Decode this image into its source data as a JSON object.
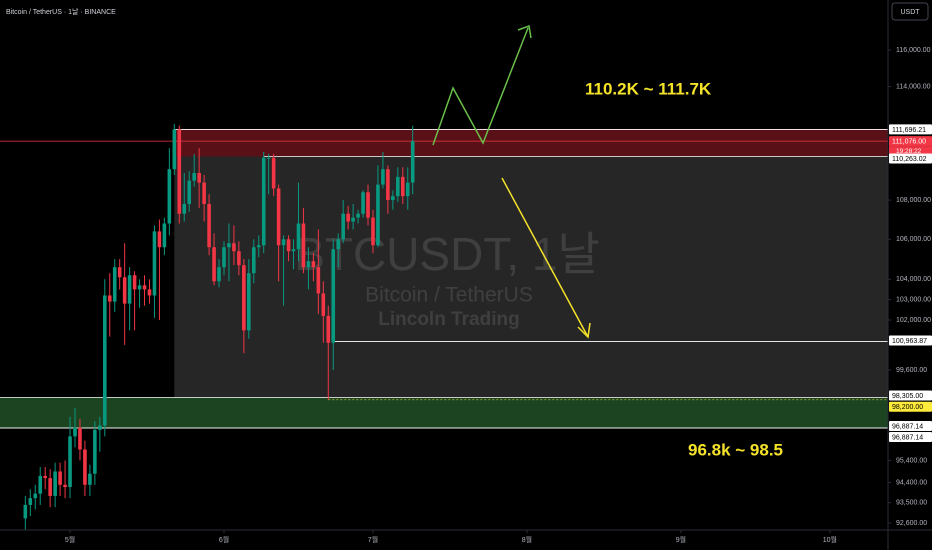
{
  "header": {
    "symbol": "Bitcoin / TetherUS · 1날 · BINANCE",
    "currency": "USDT"
  },
  "chart_data": {
    "type": "candlestick",
    "log": true,
    "up_color": "#089981",
    "down_color": "#f23645",
    "x": [
      112,
      113,
      114,
      115,
      116,
      117,
      118,
      119,
      120,
      121,
      122,
      123,
      124,
      125,
      126,
      127,
      128,
      129,
      130,
      131,
      132,
      133,
      134,
      135,
      136,
      137,
      138,
      139,
      140,
      141,
      142,
      143,
      144,
      145,
      146,
      147,
      148,
      149,
      150,
      151,
      152,
      153,
      154,
      155,
      156,
      157,
      158,
      159,
      160,
      161,
      162,
      163,
      164,
      165,
      166,
      167,
      168,
      169,
      170,
      171,
      172,
      173,
      174,
      175,
      176,
      177,
      178,
      179,
      180,
      181,
      182,
      183,
      184,
      185,
      186,
      187,
      188,
      189,
      190
    ],
    "open": [
      92800,
      93400,
      93700,
      93900,
      94700,
      94600,
      93800,
      94900,
      94300,
      94200,
      96500,
      96900,
      95900,
      94300,
      94800,
      96800,
      97000,
      103200,
      102900,
      104600,
      104100,
      102800,
      104200,
      103500,
      103700,
      103500,
      103200,
      106400,
      105600,
      106800,
      109600,
      111700,
      107300,
      107800,
      109000,
      109400,
      108900,
      107800,
      105600,
      103900,
      104600,
      105600,
      105800,
      105400,
      104700,
      101500,
      104300,
      105600,
      105700,
      110200,
      110200,
      108600,
      105700,
      106000,
      105400,
      105500,
      106800,
      104600,
      104900,
      104600,
      103300,
      102200,
      100900,
      105500,
      106000,
      107300,
      106900,
      107100,
      107300,
      108400,
      107100,
      105700,
      108800,
      109600,
      108000,
      108200,
      109200,
      108200,
      108900
    ],
    "high": [
      93800,
      94100,
      94300,
      95100,
      95100,
      95000,
      95300,
      95300,
      95400,
      97400,
      97800,
      97300,
      96300,
      95200,
      97200,
      97400,
      104000,
      104300,
      105000,
      105000,
      105800,
      104600,
      104400,
      104000,
      104200,
      104000,
      106700,
      107000,
      107100,
      110700,
      111980,
      111900,
      109400,
      109500,
      110400,
      110700,
      109300,
      108300,
      106300,
      105000,
      105900,
      106800,
      106700,
      105900,
      105000,
      105000,
      106000,
      106200,
      110500,
      110400,
      110400,
      108800,
      106200,
      106200,
      106000,
      108900,
      107600,
      105600,
      105300,
      106500,
      103900,
      102700,
      106000,
      106300,
      108000,
      107700,
      107800,
      107500,
      108500,
      108800,
      107500,
      109800,
      110500,
      109800,
      108500,
      109700,
      109700,
      109700,
      111900
    ],
    "low": [
      92300,
      92900,
      93200,
      93400,
      94100,
      93300,
      93300,
      93800,
      93700,
      93700,
      96000,
      95400,
      93800,
      93800,
      94300,
      95800,
      96500,
      101200,
      102400,
      103500,
      100800,
      101500,
      101500,
      102600,
      102700,
      102800,
      102100,
      102000,
      105200,
      106200,
      109300,
      106800,
      106900,
      107400,
      108700,
      107600,
      106900,
      105200,
      103700,
      103600,
      104200,
      103900,
      104700,
      104200,
      100400,
      101100,
      103800,
      105100,
      105300,
      108300,
      108200,
      103900,
      102700,
      104900,
      104500,
      104900,
      104300,
      103500,
      103900,
      102300,
      100900,
      98200,
      99600,
      104600,
      105800,
      106500,
      106500,
      106800,
      107100,
      106700,
      105300,
      105600,
      108600,
      107300,
      107500,
      107900,
      107800,
      107500,
      108300
    ],
    "close": [
      93400,
      93700,
      93900,
      94700,
      94600,
      93800,
      94900,
      94300,
      94200,
      96500,
      96900,
      95900,
      94300,
      94800,
      96800,
      97000,
      103200,
      102900,
      104600,
      104100,
      102800,
      104200,
      103500,
      103700,
      103500,
      103200,
      106400,
      105600,
      106800,
      109600,
      111700,
      107300,
      107800,
      109000,
      109400,
      108900,
      107800,
      105600,
      103900,
      104600,
      105600,
      105800,
      105400,
      104700,
      101500,
      104300,
      105600,
      105700,
      110200,
      110200,
      108600,
      105700,
      106000,
      105400,
      105500,
      106800,
      104600,
      104900,
      104600,
      103300,
      102200,
      100900,
      105500,
      106000,
      107300,
      106900,
      107100,
      107300,
      108400,
      107100,
      105700,
      108800,
      109600,
      108000,
      108200,
      109200,
      108200,
      108900,
      111076
    ],
    "xlim": [
      106.9,
      285.7
    ],
    "xticks": [
      {
        "value": 121,
        "label": "5월"
      },
      {
        "value": 152,
        "label": "6월"
      },
      {
        "value": 182,
        "label": "7월"
      },
      {
        "value": 213,
        "label": "8월"
      },
      {
        "value": 244,
        "label": "9월"
      },
      {
        "value": 274,
        "label": "10월"
      }
    ],
    "ylim": [
      92290,
      118800
    ],
    "yticks": [
      {
        "value": 116000,
        "label": "116,000.00"
      },
      {
        "value": 114000,
        "label": "114,000.00"
      },
      {
        "value": 108000,
        "label": "108,000.00"
      },
      {
        "value": 106000,
        "label": "106,000.00"
      },
      {
        "value": 104000,
        "label": "104,000.00"
      },
      {
        "value": 103000,
        "label": "103,000.00"
      },
      {
        "value": 102000,
        "label": "102,000.00"
      },
      {
        "value": 99600,
        "label": "99,600.00"
      },
      {
        "value": 95400,
        "label": "95,400.00"
      },
      {
        "value": 94400,
        "label": "94,400.00"
      },
      {
        "value": 93500,
        "label": "93,500.00"
      },
      {
        "value": 92600,
        "label": "92,600.00"
      }
    ],
    "zones": [
      {
        "range": [
          110263.02,
          111696.21
        ],
        "color": "#5a1017",
        "start": 142
      },
      {
        "range": [
          98305,
          110263.02
        ],
        "color": "#262626",
        "start": 142
      },
      {
        "range": [
          96887.14,
          98305
        ],
        "color": "#1d4421"
      }
    ],
    "levels": [
      {
        "value": 111696.21,
        "label": "111,696.21",
        "color": "#ffffff",
        "start": 142
      },
      {
        "value": 111076,
        "label": "111,076.00",
        "color": "#f23645",
        "countdown": "19:28:22"
      },
      {
        "value": 110263.02,
        "label": "110,263.02",
        "color": "#ffffff",
        "start": 160
      },
      {
        "value": 100963.87,
        "label": "100,963.87",
        "color": "#ffffff",
        "start": 174
      },
      {
        "value": 98305,
        "label": "98,305.00",
        "color": "#ffffff"
      },
      {
        "value": 98200,
        "label": "98,200.00",
        "color": "#ffeb3b",
        "start": 173,
        "dashed": true
      },
      {
        "value": 96887.14,
        "label": "96,887.14",
        "color": "#ffffff"
      },
      {
        "value": 96887.14,
        "label": "96,887.14",
        "color": "#ffffff"
      }
    ],
    "annotations": [
      "110.2K ~ 111.7K",
      "96.8k ~ 98.5"
    ],
    "watermark": [
      "BTCUSDT, 1날",
      "Bitcoin / TetherUS",
      "Lincoln Trading"
    ]
  }
}
